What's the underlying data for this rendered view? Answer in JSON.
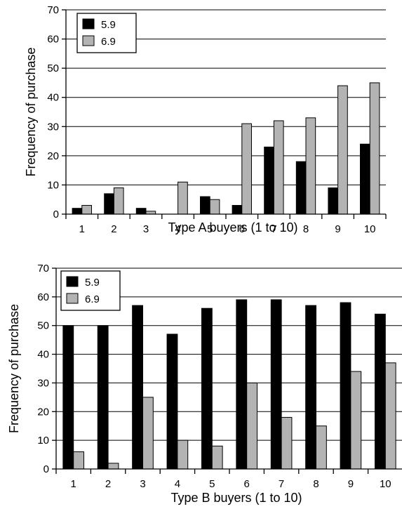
{
  "chart_data": [
    {
      "type": "bar",
      "title": "",
      "xlabel": "Type A buyers (1 to 10)",
      "ylabel": "Frequency of purchase",
      "ylim": [
        0,
        70
      ],
      "yticks": [
        0,
        10,
        20,
        30,
        40,
        50,
        60,
        70
      ],
      "categories": [
        "1",
        "2",
        "3",
        "4",
        "5",
        "6",
        "7",
        "8",
        "9",
        "10"
      ],
      "grid": true,
      "legend_position": "top-left",
      "series": [
        {
          "name": "5.9",
          "color": "#000000",
          "values": [
            2,
            7,
            2,
            0,
            6,
            3,
            23,
            18,
            9,
            24
          ]
        },
        {
          "name": "6.9",
          "color": "#b3b3b3",
          "values": [
            3,
            9,
            1,
            11,
            5,
            31,
            32,
            33,
            44,
            45
          ]
        }
      ]
    },
    {
      "type": "bar",
      "title": "",
      "xlabel": "Type B buyers (1 to 10)",
      "ylabel": "Frequency of purchase",
      "ylim": [
        0,
        70
      ],
      "yticks": [
        0,
        10,
        20,
        30,
        40,
        50,
        60,
        70
      ],
      "categories": [
        "1",
        "2",
        "3",
        "4",
        "5",
        "6",
        "7",
        "8",
        "9",
        "10"
      ],
      "grid": true,
      "legend_position": "top-left",
      "series": [
        {
          "name": "5.9",
          "color": "#000000",
          "values": [
            50,
            50,
            57,
            47,
            56,
            59,
            59,
            57,
            58,
            54
          ]
        },
        {
          "name": "6.9",
          "color": "#b3b3b3",
          "values": [
            6,
            2,
            25,
            10,
            8,
            30,
            18,
            15,
            34,
            37
          ]
        }
      ]
    }
  ]
}
